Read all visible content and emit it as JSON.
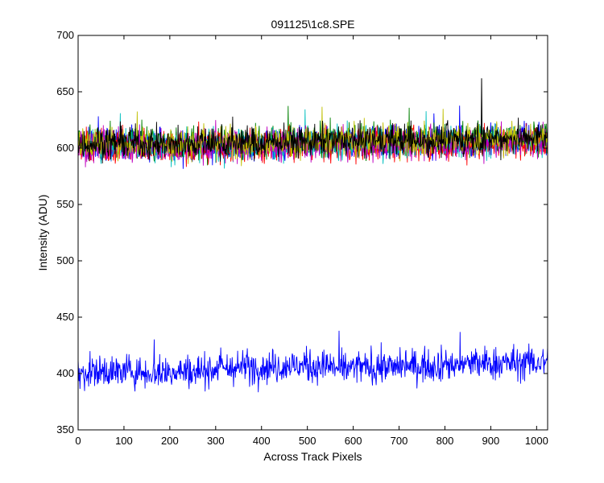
{
  "chart_data": {
    "type": "line",
    "title": "091125\\1c8.SPE",
    "xlabel": "Across Track Pixels",
    "ylabel": "Intensity (ADU)",
    "xlim": [
      0,
      1024
    ],
    "ylim": [
      350,
      700
    ],
    "xticks": [
      0,
      100,
      200,
      300,
      400,
      500,
      600,
      700,
      800,
      900,
      1000
    ],
    "yticks": [
      350,
      400,
      450,
      500,
      550,
      600,
      650,
      700
    ],
    "xtick_labels": [
      "0",
      "100",
      "200",
      "300",
      "400",
      "500",
      "600",
      "700",
      "800",
      "900",
      "1000"
    ],
    "ytick_labels": [
      "350",
      "400",
      "450",
      "500",
      "550",
      "600",
      "650",
      "700"
    ],
    "grid": false,
    "legend": "none",
    "series": [
      {
        "color": "#0000ff",
        "points": [
          [
            0,
            603
          ],
          [
            100,
            604
          ],
          [
            200,
            601
          ],
          [
            300,
            603
          ],
          [
            400,
            603
          ],
          [
            500,
            604
          ],
          [
            600,
            604
          ],
          [
            700,
            606
          ],
          [
            800,
            606
          ],
          [
            900,
            607
          ],
          [
            1024,
            608
          ]
        ]
      },
      {
        "color": "#008000",
        "points": [
          [
            0,
            605
          ],
          [
            100,
            606
          ],
          [
            200,
            604
          ],
          [
            300,
            606
          ],
          [
            400,
            606
          ],
          [
            500,
            606
          ],
          [
            600,
            607
          ],
          [
            700,
            608
          ],
          [
            800,
            608
          ],
          [
            900,
            609
          ],
          [
            1024,
            610
          ]
        ]
      },
      {
        "color": "#ff0000",
        "points": [
          [
            0,
            600
          ],
          [
            100,
            601
          ],
          [
            200,
            600
          ],
          [
            300,
            601
          ],
          [
            400,
            601
          ],
          [
            500,
            602
          ],
          [
            600,
            602
          ],
          [
            700,
            603
          ],
          [
            800,
            603
          ],
          [
            900,
            604
          ],
          [
            1024,
            605
          ]
        ]
      },
      {
        "color": "#00bfbf",
        "points": [
          [
            0,
            602
          ],
          [
            100,
            603
          ],
          [
            200,
            601
          ],
          [
            300,
            603
          ],
          [
            400,
            602
          ],
          [
            500,
            603
          ],
          [
            600,
            604
          ],
          [
            700,
            605
          ],
          [
            800,
            605
          ],
          [
            900,
            606
          ],
          [
            1024,
            607
          ]
        ]
      },
      {
        "color": "#bf00bf",
        "points": [
          [
            0,
            601
          ],
          [
            100,
            602
          ],
          [
            200,
            600
          ],
          [
            300,
            602
          ],
          [
            400,
            602
          ],
          [
            500,
            602
          ],
          [
            600,
            603
          ],
          [
            700,
            604
          ],
          [
            800,
            604
          ],
          [
            900,
            605
          ],
          [
            1024,
            606
          ]
        ]
      },
      {
        "color": "#bfbf00",
        "points": [
          [
            0,
            604
          ],
          [
            100,
            605
          ],
          [
            200,
            603
          ],
          [
            300,
            605
          ],
          [
            400,
            605
          ],
          [
            500,
            605
          ],
          [
            600,
            606
          ],
          [
            700,
            607
          ],
          [
            800,
            607
          ],
          [
            900,
            608
          ],
          [
            1024,
            609
          ]
        ]
      },
      {
        "color": "#000000",
        "points": [
          [
            0,
            604
          ],
          [
            100,
            605
          ],
          [
            200,
            603
          ],
          [
            300,
            605
          ],
          [
            400,
            605
          ],
          [
            500,
            606
          ],
          [
            600,
            606
          ],
          [
            700,
            607
          ],
          [
            800,
            607
          ],
          [
            900,
            608
          ],
          [
            1024,
            609
          ]
        ]
      },
      {
        "color": "#0000ff",
        "points": [
          [
            0,
            401
          ],
          [
            100,
            402
          ],
          [
            200,
            401
          ],
          [
            300,
            404
          ],
          [
            400,
            406
          ],
          [
            500,
            407
          ],
          [
            600,
            405
          ],
          [
            700,
            406
          ],
          [
            800,
            408
          ],
          [
            900,
            409
          ],
          [
            1024,
            410
          ]
        ]
      }
    ]
  }
}
